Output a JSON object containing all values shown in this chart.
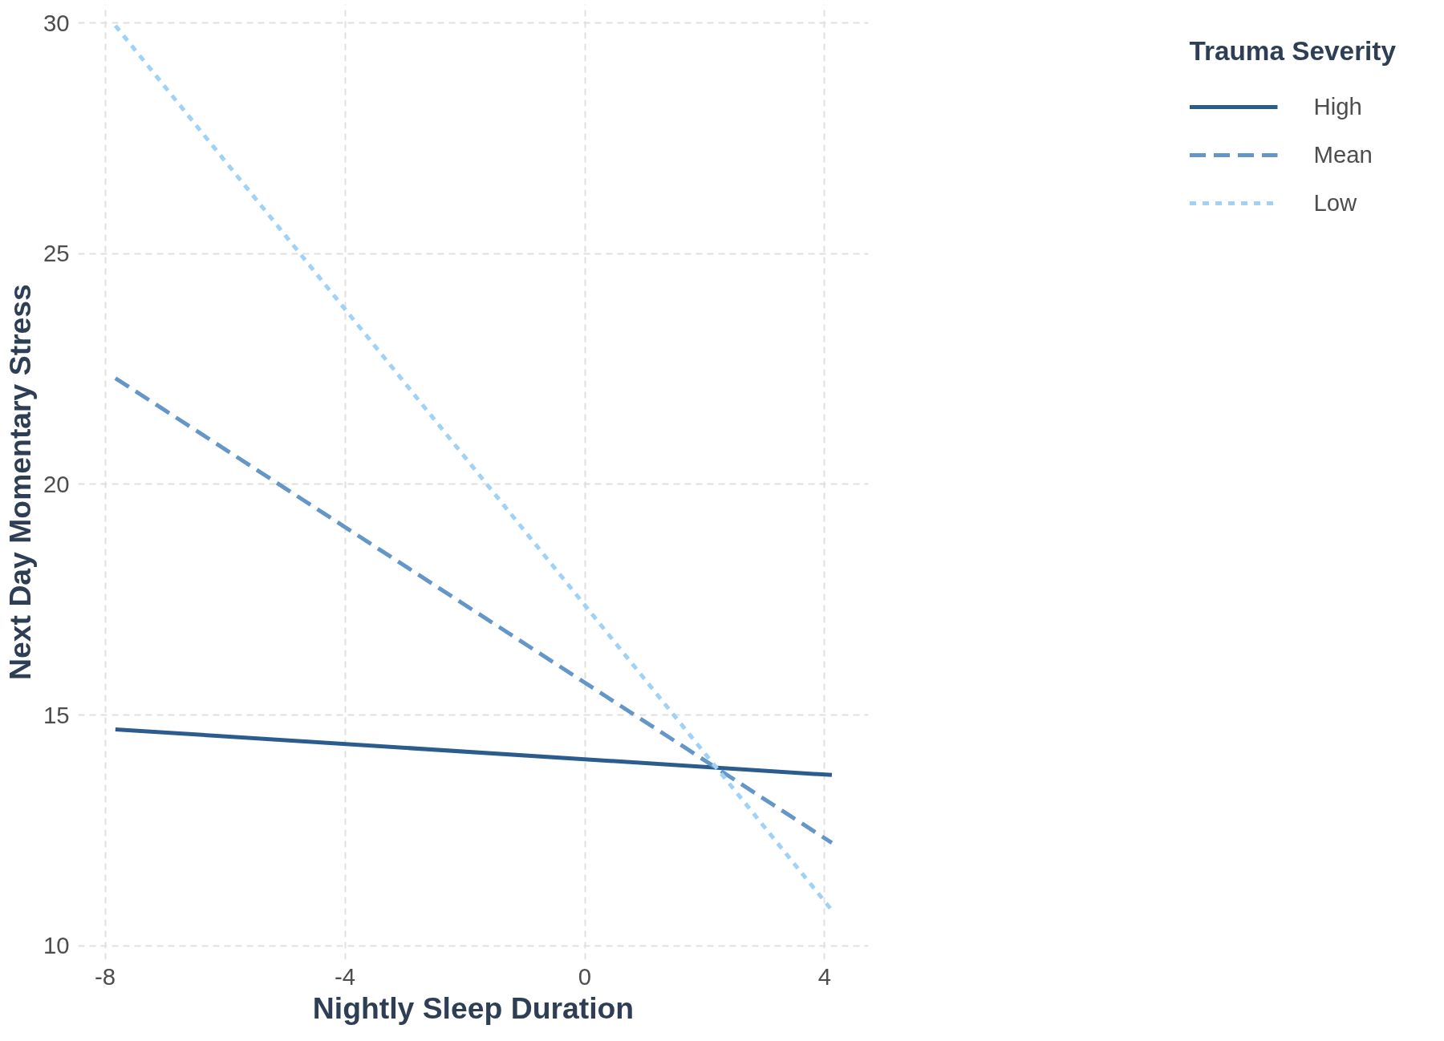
{
  "chart_data": {
    "type": "line",
    "xlabel": "Nightly Sleep Duration",
    "ylabel": "Next Day Momentary Stress",
    "legend_title": "Trauma Severity",
    "x": [
      -7.83,
      4.12
    ],
    "series": [
      {
        "name": "High",
        "color": "#2b5c8e",
        "values": [
          14.69,
          13.7
        ],
        "line_style": "solid"
      },
      {
        "name": "Mean",
        "color": "#6496c8",
        "values": [
          22.3,
          12.23
        ],
        "line_style": "dashed"
      },
      {
        "name": "Low",
        "color": "#9fd2f6",
        "values": [
          29.94,
          10.77
        ],
        "line_style": "dotted"
      }
    ],
    "xlim": [
      -8.45,
      4.73
    ],
    "ylim": [
      9.7,
      30.4
    ],
    "xticks": [
      -8,
      -4,
      0,
      4
    ],
    "yticks": [
      10,
      15,
      20,
      25,
      30
    ],
    "grid": true,
    "legend": "right",
    "marker": "none"
  }
}
